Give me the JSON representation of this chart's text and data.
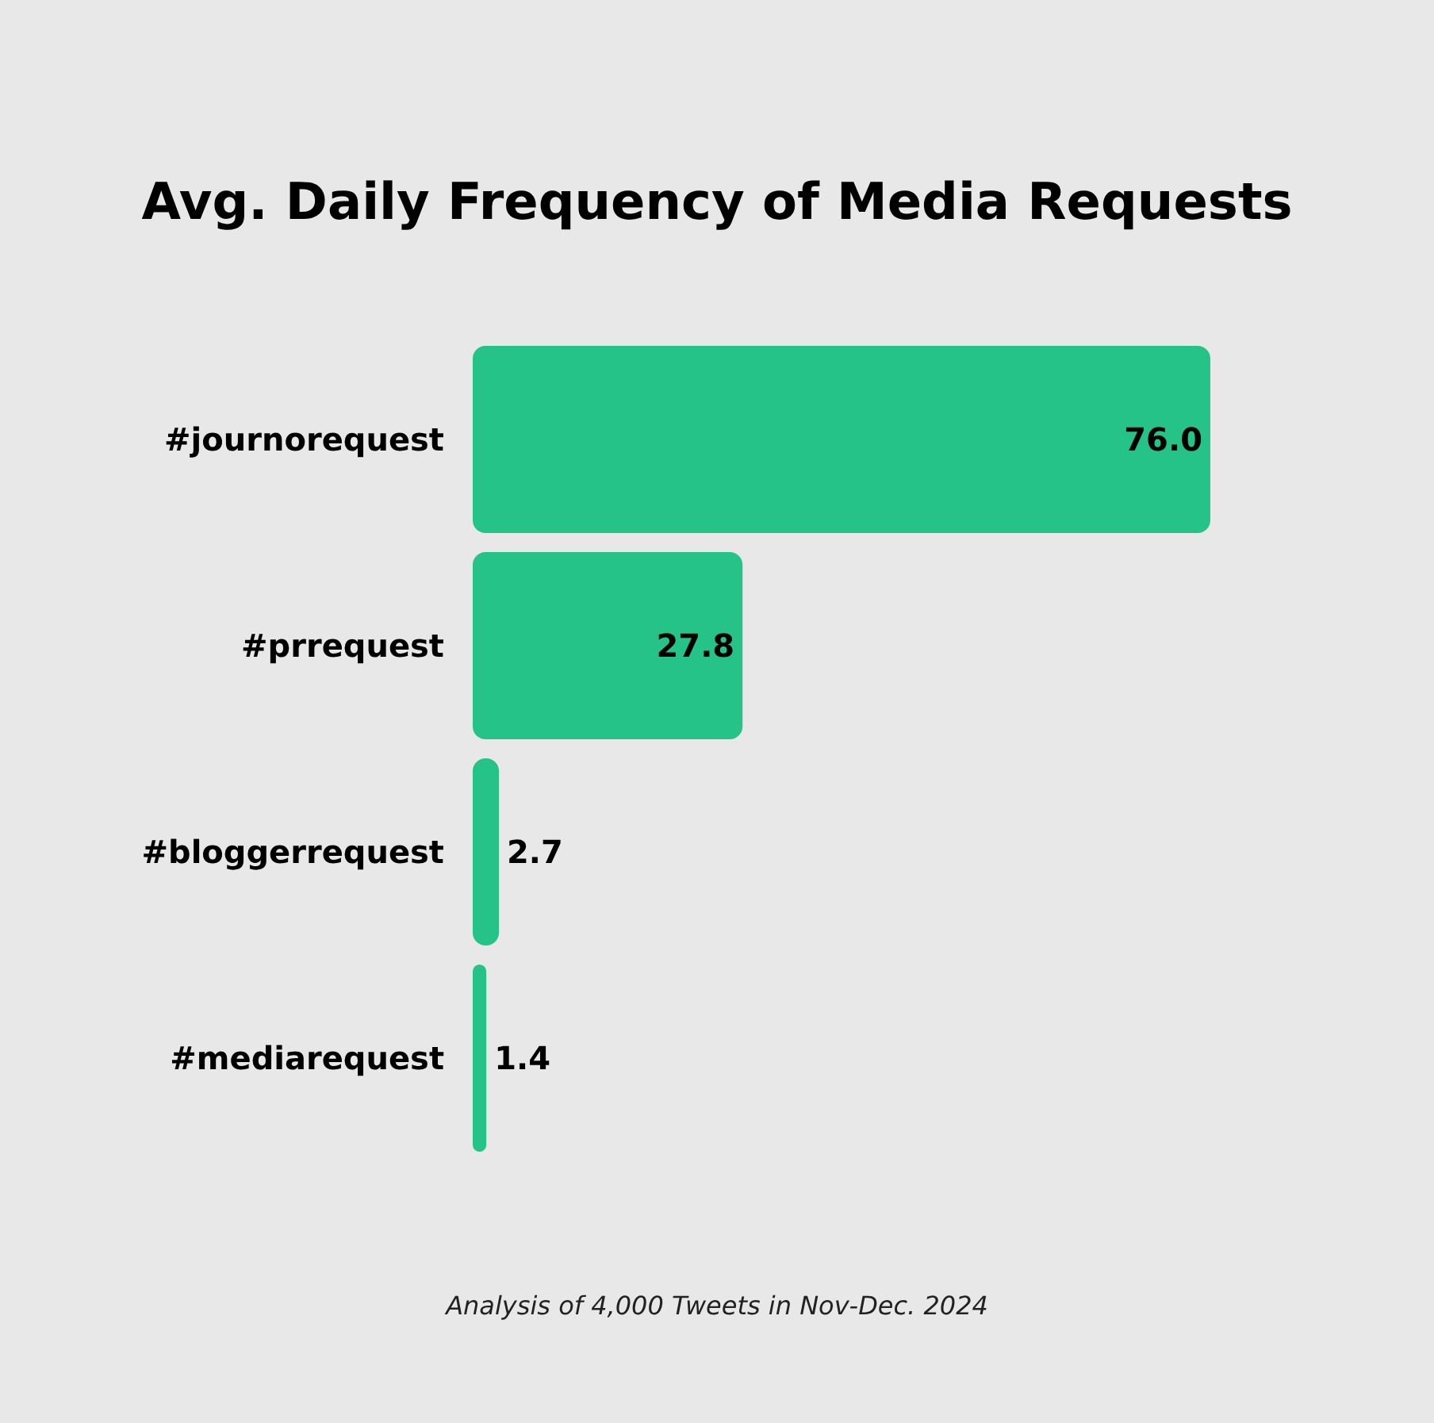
{
  "chart_data": {
    "type": "bar",
    "orientation": "horizontal",
    "title": "Avg. Daily Frequency of Media Requests",
    "categories": [
      "#journorequest",
      "#prrequest",
      "#bloggerrequest",
      "#mediarequest"
    ],
    "values": [
      76.0,
      27.8,
      2.7,
      1.4
    ],
    "color": "#25c388",
    "data_labels": true,
    "value_labels": [
      "76.0",
      "27.8",
      "2.7",
      "1.4"
    ],
    "annotations": [
      "Analysis of 4,000 Tweets in Nov-Dec. 2024"
    ]
  }
}
